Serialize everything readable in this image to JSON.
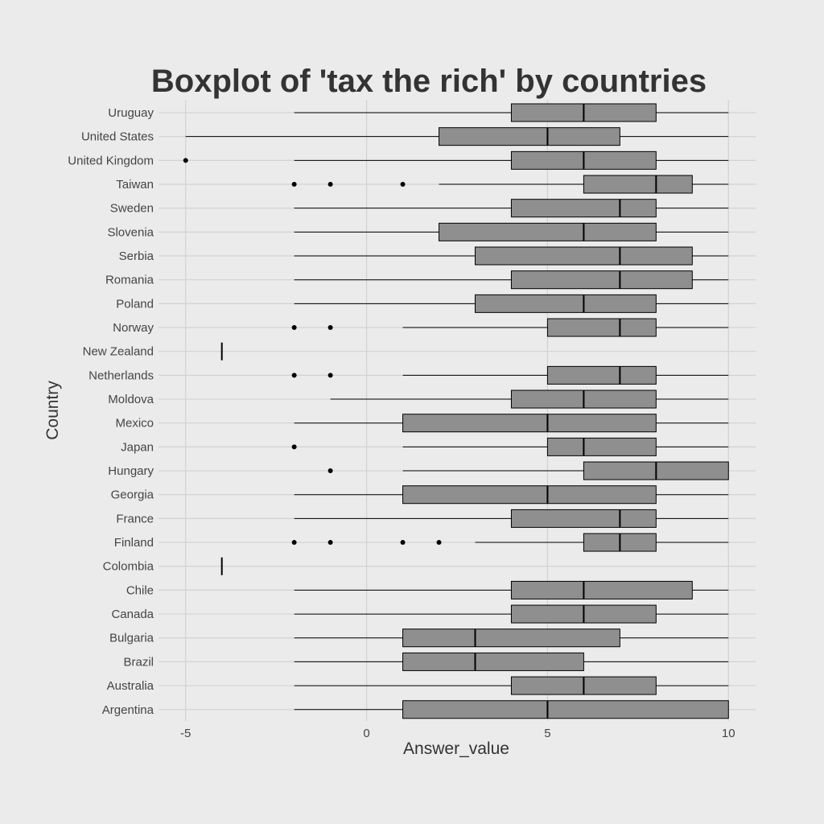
{
  "chart_data": {
    "type": "boxplot",
    "title": "Boxplot of 'tax the rich' by countries",
    "xlabel": "Answer_value",
    "ylabel": "Country",
    "xlim": [
      -5.75,
      10.75
    ],
    "xticks": [
      -5,
      0,
      5,
      10
    ],
    "grid": true,
    "categories": [
      "Uruguay",
      "United States",
      "United Kingdom",
      "Taiwan",
      "Sweden",
      "Slovenia",
      "Serbia",
      "Romania",
      "Poland",
      "Norway",
      "New Zealand",
      "Netherlands",
      "Moldova",
      "Mexico",
      "Japan",
      "Hungary",
      "Georgia",
      "France",
      "Finland",
      "Colombia",
      "Chile",
      "Canada",
      "Bulgaria",
      "Brazil",
      "Australia",
      "Argentina"
    ],
    "boxes": [
      {
        "country": "Uruguay",
        "whisker_low": -2,
        "q1": 4,
        "median": 6,
        "q3": 8,
        "whisker_high": 10,
        "outliers": []
      },
      {
        "country": "United States",
        "whisker_low": -5,
        "q1": 2,
        "median": 5,
        "q3": 7,
        "whisker_high": 10,
        "outliers": []
      },
      {
        "country": "United Kingdom",
        "whisker_low": -2,
        "q1": 4,
        "median": 6,
        "q3": 8,
        "whisker_high": 10,
        "outliers": [
          -5
        ]
      },
      {
        "country": "Taiwan",
        "whisker_low": 2,
        "q1": 6,
        "median": 8,
        "q3": 9,
        "whisker_high": 10,
        "outliers": [
          -2,
          -1,
          1
        ]
      },
      {
        "country": "Sweden",
        "whisker_low": -2,
        "q1": 4,
        "median": 7,
        "q3": 8,
        "whisker_high": 10,
        "outliers": []
      },
      {
        "country": "Slovenia",
        "whisker_low": -2,
        "q1": 2,
        "median": 6,
        "q3": 8,
        "whisker_high": 10,
        "outliers": []
      },
      {
        "country": "Serbia",
        "whisker_low": -2,
        "q1": 3,
        "median": 7,
        "q3": 9,
        "whisker_high": 10,
        "outliers": []
      },
      {
        "country": "Romania",
        "whisker_low": -2,
        "q1": 4,
        "median": 7,
        "q3": 9,
        "whisker_high": 10,
        "outliers": []
      },
      {
        "country": "Poland",
        "whisker_low": -2,
        "q1": 3,
        "median": 6,
        "q3": 8,
        "whisker_high": 10,
        "outliers": []
      },
      {
        "country": "Norway",
        "whisker_low": 1,
        "q1": 5,
        "median": 7,
        "q3": 8,
        "whisker_high": 10,
        "outliers": [
          -2,
          -1
        ]
      },
      {
        "country": "New Zealand",
        "whisker_low": -4,
        "q1": -4,
        "median": -4,
        "q3": -4,
        "whisker_high": -4,
        "outliers": []
      },
      {
        "country": "Netherlands",
        "whisker_low": 1,
        "q1": 5,
        "median": 7,
        "q3": 8,
        "whisker_high": 10,
        "outliers": [
          -2,
          -1
        ]
      },
      {
        "country": "Moldova",
        "whisker_low": -1,
        "q1": 4,
        "median": 6,
        "q3": 8,
        "whisker_high": 10,
        "outliers": []
      },
      {
        "country": "Mexico",
        "whisker_low": -2,
        "q1": 1,
        "median": 5,
        "q3": 8,
        "whisker_high": 10,
        "outliers": []
      },
      {
        "country": "Japan",
        "whisker_low": 1,
        "q1": 5,
        "median": 6,
        "q3": 8,
        "whisker_high": 10,
        "outliers": [
          -2
        ]
      },
      {
        "country": "Hungary",
        "whisker_low": 1,
        "q1": 6,
        "median": 8,
        "q3": 10,
        "whisker_high": 10,
        "outliers": [
          -1
        ]
      },
      {
        "country": "Georgia",
        "whisker_low": -2,
        "q1": 1,
        "median": 5,
        "q3": 8,
        "whisker_high": 10,
        "outliers": []
      },
      {
        "country": "France",
        "whisker_low": -2,
        "q1": 4,
        "median": 7,
        "q3": 8,
        "whisker_high": 10,
        "outliers": []
      },
      {
        "country": "Finland",
        "whisker_low": 3,
        "q1": 6,
        "median": 7,
        "q3": 8,
        "whisker_high": 10,
        "outliers": [
          -2,
          -1,
          1,
          2
        ]
      },
      {
        "country": "Colombia",
        "whisker_low": -4,
        "q1": -4,
        "median": -4,
        "q3": -4,
        "whisker_high": -4,
        "outliers": []
      },
      {
        "country": "Chile",
        "whisker_low": -2,
        "q1": 4,
        "median": 6,
        "q3": 9,
        "whisker_high": 10,
        "outliers": []
      },
      {
        "country": "Canada",
        "whisker_low": -2,
        "q1": 4,
        "median": 6,
        "q3": 8,
        "whisker_high": 10,
        "outliers": []
      },
      {
        "country": "Bulgaria",
        "whisker_low": -2,
        "q1": 1,
        "median": 3,
        "q3": 7,
        "whisker_high": 10,
        "outliers": []
      },
      {
        "country": "Brazil",
        "whisker_low": -2,
        "q1": 1,
        "median": 3,
        "q3": 6,
        "whisker_high": 10,
        "outliers": []
      },
      {
        "country": "Australia",
        "whisker_low": -2,
        "q1": 4,
        "median": 6,
        "q3": 8,
        "whisker_high": 10,
        "outliers": []
      },
      {
        "country": "Argentina",
        "whisker_low": -2,
        "q1": 1,
        "median": 5,
        "q3": 10,
        "whisker_high": 10,
        "outliers": []
      }
    ],
    "colors": {
      "background": "#ebebeb",
      "grid": "#d2d2d2",
      "box_fill": "#8f8f8f",
      "line": "#000000",
      "title": "#333333",
      "tick_label": "#444444"
    }
  }
}
